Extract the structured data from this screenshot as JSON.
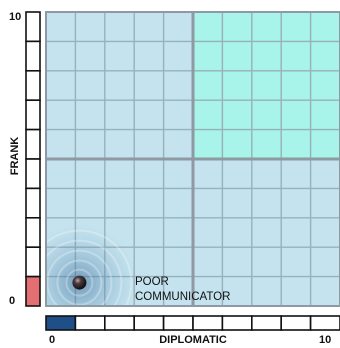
{
  "chart_data": {
    "type": "scatter",
    "title": "",
    "xlabel": "DIPLOMATIC",
    "ylabel": "FRANK",
    "xlim": [
      0,
      10
    ],
    "ylim": [
      0,
      10
    ],
    "x_tick_labels": [
      "0",
      "10"
    ],
    "y_tick_labels": [
      "0",
      "10"
    ],
    "grid": true,
    "highlighted_quadrant": "top-right",
    "points": [
      {
        "x": 1,
        "y": 1,
        "label": [
          "POOR",
          "COMMUNICATOR"
        ]
      }
    ],
    "x_scale_fill": 1,
    "y_scale_fill": 1,
    "x_scale_segments": 10,
    "y_scale_segments": 10
  },
  "colors": {
    "plot_background": "#c4e3ee",
    "highlight_quadrant": "#a8f3ea",
    "grid_line": "#98b0bb",
    "quadrant_divider": "#8e9aa2",
    "x_scale_fill": "#1e4f86",
    "y_scale_fill": "#e36f73",
    "marker": "#2a2326"
  }
}
